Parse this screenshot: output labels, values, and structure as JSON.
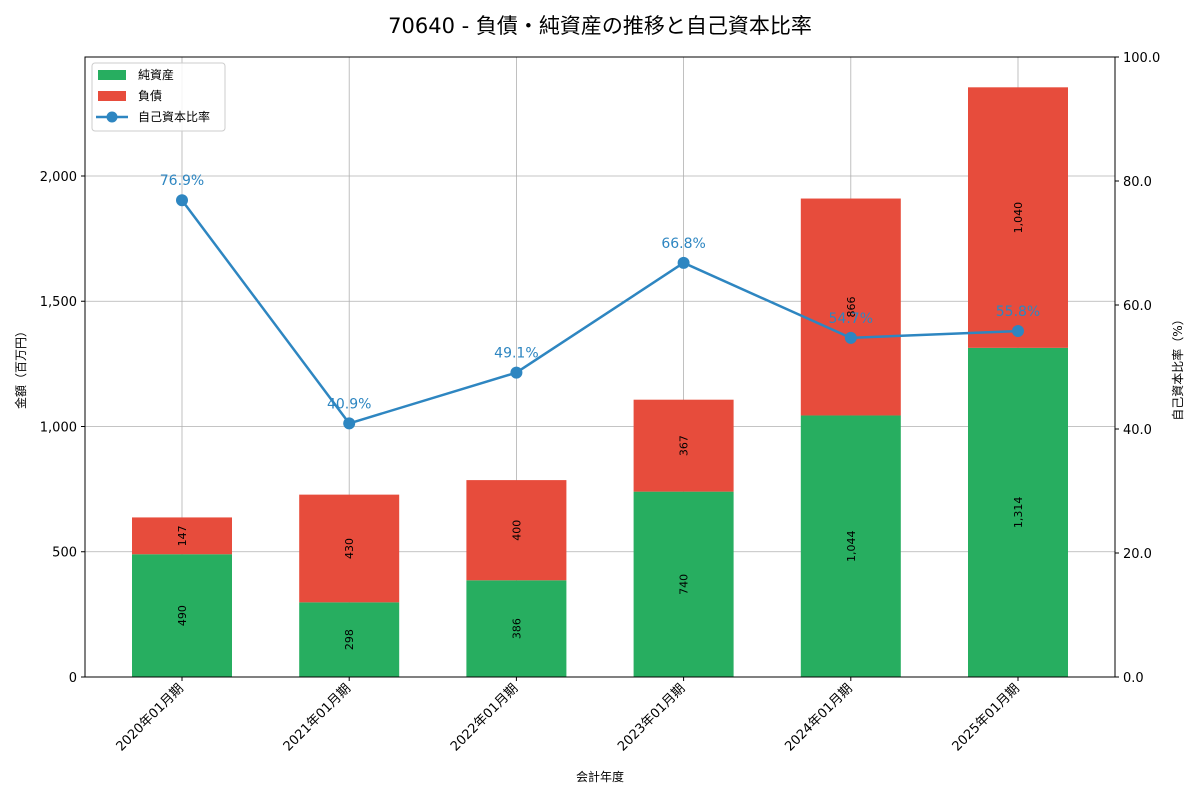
{
  "chart_data": {
    "type": "bar",
    "subtype": "stacked-bar-with-line-secondary-axis",
    "title": "70640 - 負債・純資産の推移と自己資本比率",
    "xlabel": "会計年度",
    "ylabel": "金額（百万円）",
    "ylabel_right": "自己資本比率（%）",
    "categories": [
      "2020年01月期",
      "2021年01月期",
      "2022年01月期",
      "2023年01月期",
      "2024年01月期",
      "2025年01月期"
    ],
    "series": [
      {
        "name": "純資産",
        "type": "bar",
        "stack": "total",
        "axis": "left",
        "color": "#27ae60",
        "values": [
          490,
          298,
          386,
          740,
          1044,
          1314
        ],
        "labels": [
          "490",
          "298",
          "386",
          "740",
          "1,044",
          "1,314"
        ]
      },
      {
        "name": "負債",
        "type": "bar",
        "stack": "total",
        "axis": "left",
        "color": "#e74c3c",
        "values": [
          147,
          430,
          400,
          367,
          866,
          1040
        ],
        "labels": [
          "147",
          "430",
          "400",
          "367",
          "866",
          "1,040"
        ]
      },
      {
        "name": "自己資本比率",
        "type": "line",
        "axis": "right",
        "color": "#2e86c1",
        "marker": "circle",
        "values": [
          76.9,
          40.9,
          49.1,
          66.8,
          54.7,
          55.8
        ],
        "labels": [
          "76.9%",
          "40.9%",
          "49.1%",
          "66.8%",
          "54.7%",
          "55.8%"
        ]
      }
    ],
    "ylim": [
      0,
      2475
    ],
    "yticks": [
      0,
      500,
      1000,
      1500,
      2000
    ],
    "ytick_labels": [
      "0",
      "500",
      "1,000",
      "1,500",
      "2,000"
    ],
    "ylim_right": [
      0,
      100
    ],
    "yticks_right": [
      0,
      20,
      40,
      60,
      80,
      100
    ],
    "ytick_labels_right": [
      "0.0",
      "20.0",
      "40.0",
      "60.0",
      "80.0",
      "100.0"
    ],
    "grid": true,
    "legend_position": "upper left"
  }
}
